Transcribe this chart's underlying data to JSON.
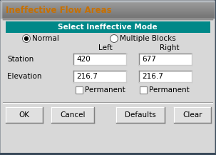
{
  "title": "Ineffective Flow Areas",
  "title_color": "#c87000",
  "header_text": "Select Ineffective Mode",
  "header_bg": "#008888",
  "header_fg": "#ffffff",
  "radio_normal": "Normal",
  "radio_multiple": "Multiple Blocks",
  "col_left": "Left",
  "col_right": "Right",
  "row1_label": "Station",
  "row2_label": "Elevation",
  "left_station": "420",
  "right_station": "677",
  "left_elevation": "216.7",
  "right_elevation": "216.7",
  "perm_label": "Permanent",
  "buttons": [
    "OK",
    "Cancel",
    "Defaults",
    "Clear"
  ],
  "outer_bg": "#7a8a9a",
  "dialog_bg": "#d8d8d8",
  "input_bg": "#ffffff",
  "button_bg": "#e0e0e0",
  "figsize": [
    3.03,
    2.17
  ],
  "dpi": 100
}
